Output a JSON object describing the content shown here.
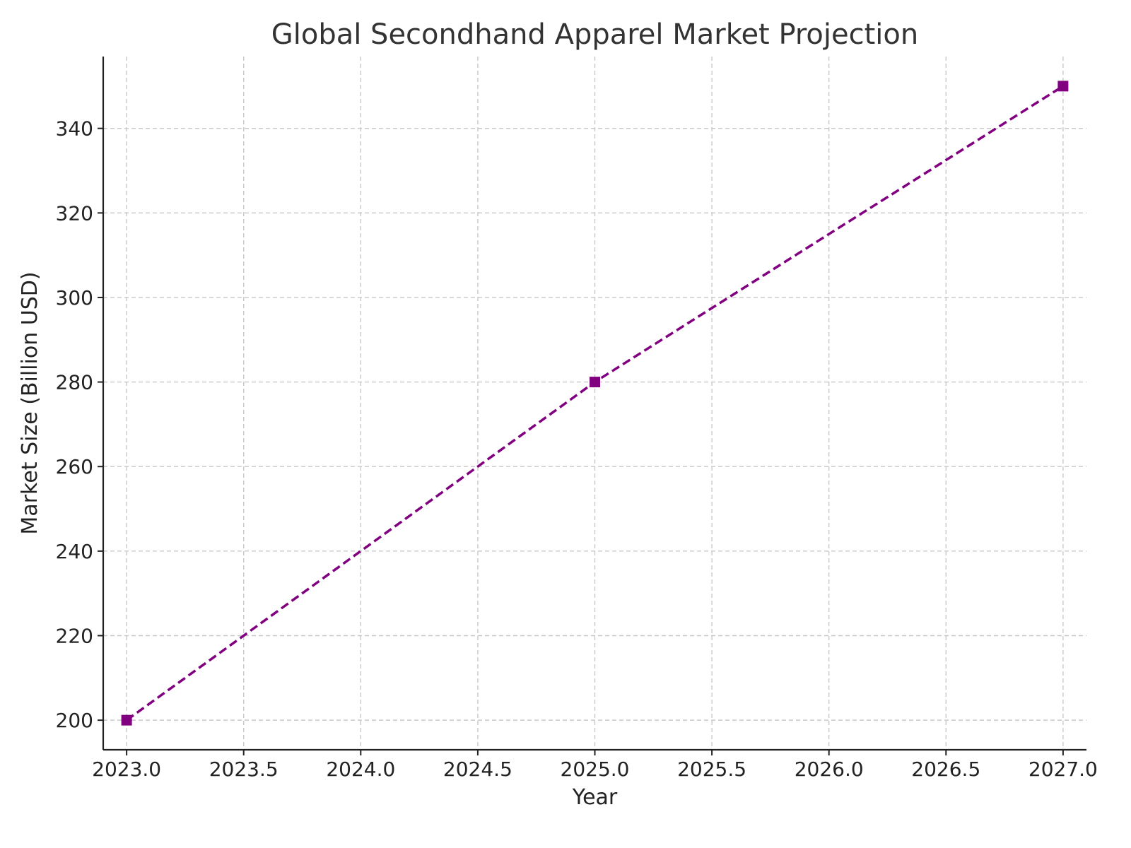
{
  "chart_data": {
    "type": "line",
    "title": "Global Secondhand Apparel Market Projection",
    "xlabel": "Year",
    "ylabel": "Market Size (Billion USD)",
    "x": [
      2023,
      2025,
      2027
    ],
    "series": [
      {
        "values": [
          200,
          280,
          350
        ]
      }
    ],
    "xlim": [
      2022.9,
      2027.1
    ],
    "ylim": [
      193,
      357
    ],
    "xticks": [
      "2023.0",
      "2023.5",
      "2024.0",
      "2024.5",
      "2025.0",
      "2025.5",
      "2026.0",
      "2026.5",
      "2027.0"
    ],
    "yticks": [
      "200",
      "220",
      "240",
      "260",
      "280",
      "300",
      "320",
      "340"
    ],
    "grid": true,
    "line_style": "dashed",
    "marker": "square",
    "colors": {
      "series": "#800080",
      "grid": "#c8c8c8",
      "axis": "#222222"
    }
  }
}
